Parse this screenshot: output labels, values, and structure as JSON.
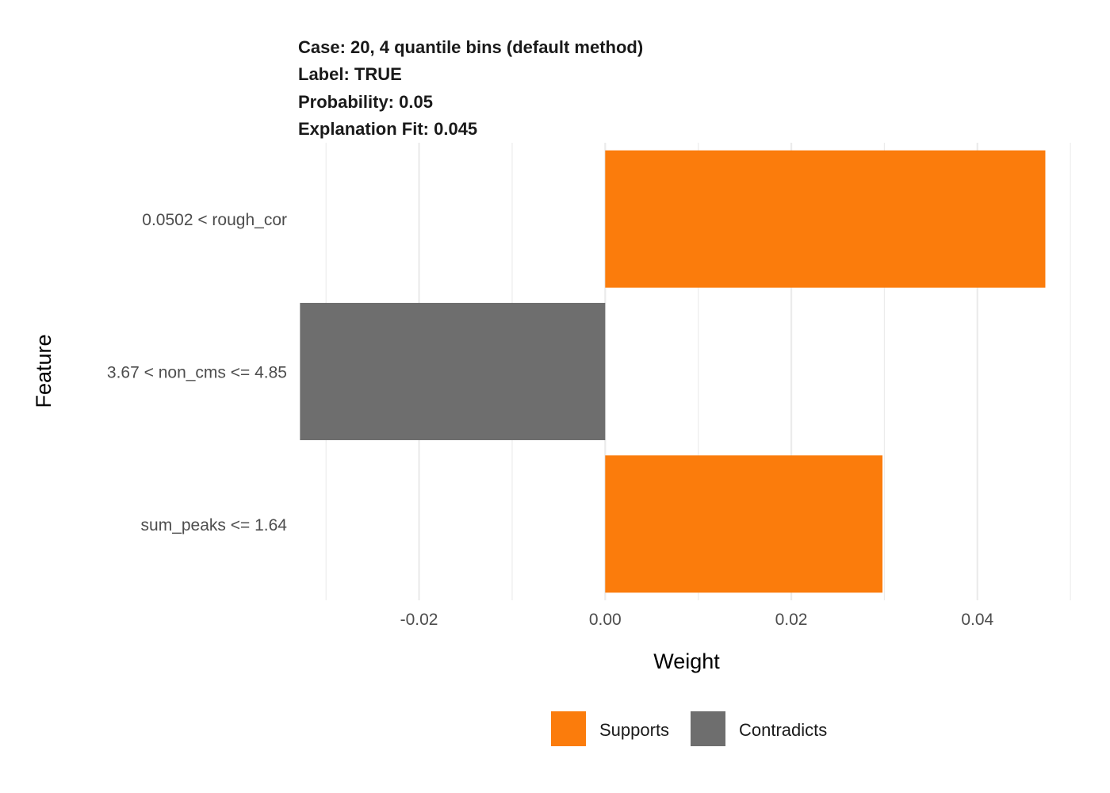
{
  "chart_data": {
    "type": "bar",
    "orientation": "horizontal",
    "title_lines": [
      "Case: 20, 4 quantile bins (default method)",
      "Label: TRUE",
      "Probability: 0.05",
      "Explanation Fit: 0.045"
    ],
    "xlabel": "Weight",
    "ylabel": "Feature",
    "xlim": [
      -0.033,
      0.0505
    ],
    "x_ticks": [
      -0.02,
      0.0,
      0.02,
      0.04
    ],
    "x_tick_labels": [
      "-0.02",
      "0.00",
      "0.02",
      "0.04"
    ],
    "x_minor_ticks": [
      -0.03,
      -0.01,
      0.01,
      0.03,
      0.05
    ],
    "grid": true,
    "categories": [
      "0.0502 < rough_cor",
      "3.67 < non_cms <= 4.85",
      "sum_peaks <= 1.64"
    ],
    "values": [
      0.0473,
      -0.0328,
      0.0298
    ],
    "bar_groups": [
      "Supports",
      "Contradicts",
      "Supports"
    ],
    "legend": {
      "position": "bottom",
      "entries": [
        {
          "label": "Supports",
          "color": "#fb7c0c"
        },
        {
          "label": "Contradicts",
          "color": "#6e6e6e"
        }
      ]
    }
  }
}
